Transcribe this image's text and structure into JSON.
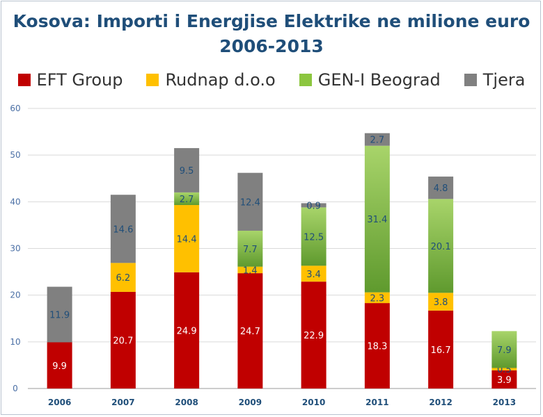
{
  "chart_data": {
    "type": "bar",
    "stacked": true,
    "title": "Kosova: Importi i Energjise Elektrike ne milione euro",
    "subtitle": "2006-2013",
    "xlabel": "",
    "ylabel": "",
    "ylim": [
      0,
      60
    ],
    "yticks": [
      "0",
      "10",
      "20",
      "30",
      "40",
      "50",
      "60"
    ],
    "grid": true,
    "legend_position": "top",
    "categories": [
      "2006",
      "2007",
      "2008",
      "2009",
      "2010",
      "2011",
      "2012",
      "2013"
    ],
    "series": [
      {
        "name": "EFT Group",
        "color": "#c00000",
        "label_color": "#ffffff",
        "values": [
          9.9,
          20.7,
          24.9,
          24.7,
          22.9,
          18.3,
          16.7,
          3.9
        ]
      },
      {
        "name": "Rudnap d.o.o",
        "color": "#ffc000",
        "label_color": "#1f4e79",
        "values": [
          null,
          6.2,
          14.4,
          1.4,
          3.4,
          2.3,
          3.8,
          0.5
        ]
      },
      {
        "name": "GEN-I Beograd",
        "color": "#8cc63f",
        "label_color": "#1f4e79",
        "values": [
          null,
          null,
          2.7,
          7.7,
          12.5,
          31.4,
          20.1,
          7.9
        ]
      },
      {
        "name": "Tjera",
        "color": "#808080",
        "label_color": "#1f4e79",
        "values": [
          11.9,
          14.6,
          9.5,
          12.4,
          0.9,
          2.7,
          4.8,
          null
        ]
      }
    ]
  }
}
